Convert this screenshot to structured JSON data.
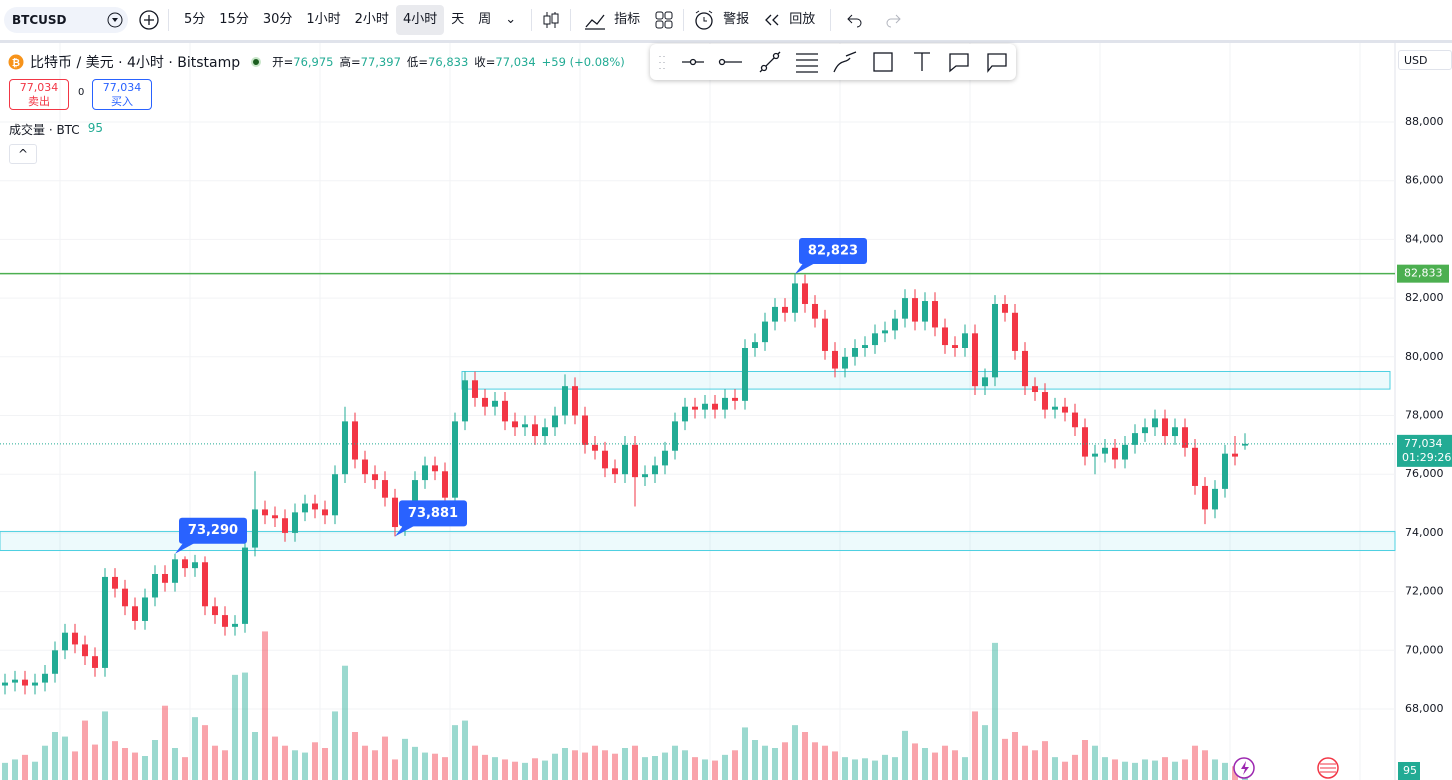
{
  "toolbar": {
    "symbol": "BTCUSD",
    "intervals": [
      "5分",
      "15分",
      "30分",
      "1小时",
      "2小时",
      "4小时",
      "天",
      "周"
    ],
    "indicators": "指标",
    "alert": "警报",
    "replay": "回放"
  },
  "legend": {
    "title": "比特币 / 美元 · 4小时 · Bitstamp",
    "ohlc": [
      {
        "label": "开=",
        "value": "76,975"
      },
      {
        "label": "高=",
        "value": "77,397"
      },
      {
        "label": "低=",
        "value": "76,833"
      },
      {
        "label": "收=",
        "value": "77,034"
      }
    ],
    "change": "+59 (+0.08%)",
    "sell": {
      "price": "77,034",
      "label": "卖出"
    },
    "spread": "0",
    "buy": {
      "price": "77,034",
      "label": "买入"
    },
    "volume_title": "成交量 · BTC"
  },
  "currency": "USD",
  "chart_data": {
    "type": "candlestick",
    "open": [
      68800,
      68900,
      69000,
      68800,
      68900,
      69200,
      70000,
      70600,
      70200,
      69800,
      69400,
      72500,
      72100,
      71500,
      71000,
      71800,
      72600,
      72300,
      73100,
      72800,
      73000,
      71500,
      71200,
      70800,
      70900,
      73500,
      74800,
      74600,
      74500,
      74000,
      74700,
      75000,
      74800,
      74600,
      76000,
      77800,
      76500,
      76000,
      75800,
      75200,
      74200,
      74600,
      75800,
      76300,
      76100,
      75200,
      77800,
      79200,
      78600,
      78300,
      78500,
      77800,
      77600,
      77700,
      77300,
      77600,
      78000,
      79000,
      78000,
      77000,
      76800,
      76200,
      76000,
      77000,
      75900,
      76000,
      76300,
      76800,
      77800,
      78300,
      78200,
      78400,
      78200,
      78600,
      78500,
      80300,
      80500,
      81200,
      81700,
      81500,
      82500,
      81800,
      81300,
      80200,
      79600,
      80000,
      80300,
      80400,
      80800,
      80900,
      81300,
      82000,
      81200,
      81900,
      81000,
      80400,
      80300,
      80800,
      79000,
      79300,
      81800,
      81500,
      80200,
      79000,
      78800,
      78200,
      78300,
      78100,
      77600,
      76600,
      76700,
      76900,
      76500,
      77000,
      77400,
      77600,
      77900,
      77300,
      77600,
      76900,
      75600,
      74800,
      75500,
      76700,
      76975
    ],
    "high": [
      69200,
      69300,
      69300,
      69200,
      69500,
      70300,
      70900,
      70900,
      70500,
      70100,
      72800,
      72800,
      72400,
      71800,
      72100,
      72900,
      72900,
      73290,
      73200,
      73250,
      73200,
      71800,
      71500,
      71200,
      73800,
      76100,
      75100,
      74900,
      74800,
      75000,
      75300,
      75300,
      75100,
      76300,
      78300,
      78100,
      76800,
      76300,
      76100,
      75500,
      74900,
      76100,
      76600,
      76600,
      76400,
      78100,
      79500,
      79500,
      78900,
      78800,
      78800,
      78100,
      78000,
      78000,
      77900,
      78300,
      79400,
      79300,
      78300,
      77300,
      77100,
      76500,
      77300,
      77300,
      76300,
      76600,
      77100,
      78100,
      78600,
      78600,
      78700,
      78700,
      78900,
      78900,
      80600,
      80800,
      81500,
      82000,
      82000,
      82823,
      82800,
      82100,
      81600,
      80500,
      80300,
      80600,
      80700,
      81100,
      81200,
      81600,
      82300,
      82300,
      82200,
      82200,
      81300,
      80700,
      81100,
      81100,
      79600,
      82100,
      82100,
      81800,
      80500,
      79300,
      79100,
      78600,
      78600,
      78400,
      77900,
      77000,
      77200,
      77200,
      77300,
      77700,
      77900,
      78200,
      78200,
      77900,
      77900,
      77200,
      75900,
      75800,
      77000,
      77300,
      77397
    ],
    "low": [
      68500,
      68600,
      68500,
      68500,
      68600,
      68900,
      69700,
      69900,
      69500,
      69100,
      69100,
      71800,
      71200,
      70700,
      70700,
      71500,
      72000,
      72000,
      72500,
      72500,
      71200,
      70900,
      70500,
      70500,
      70600,
      73200,
      74300,
      74200,
      73700,
      73700,
      74400,
      74500,
      74300,
      74300,
      75700,
      76200,
      75700,
      75500,
      74900,
      73881,
      73900,
      74300,
      75500,
      75800,
      74900,
      74900,
      77500,
      78300,
      78000,
      78000,
      77500,
      77300,
      77300,
      77000,
      77000,
      77300,
      77700,
      77700,
      76700,
      76500,
      75900,
      75700,
      75700,
      74900,
      75600,
      75700,
      76000,
      76500,
      77500,
      77900,
      77900,
      77900,
      77900,
      78200,
      78200,
      80000,
      80200,
      80900,
      81200,
      81200,
      81500,
      81000,
      79900,
      79300,
      79300,
      79700,
      80000,
      80100,
      80500,
      80600,
      81000,
      80900,
      80900,
      80700,
      80100,
      80000,
      80000,
      78700,
      78700,
      79000,
      81200,
      79900,
      78700,
      78500,
      77900,
      77900,
      77800,
      77300,
      76300,
      76000,
      76400,
      76200,
      76200,
      76700,
      77100,
      77300,
      77000,
      77000,
      76600,
      75300,
      74300,
      74500,
      75200,
      76300,
      76833
    ],
    "close": [
      68900,
      69000,
      68800,
      68900,
      69200,
      70000,
      70600,
      70200,
      69800,
      69400,
      72500,
      72100,
      71500,
      71000,
      71800,
      72600,
      72300,
      73100,
      72800,
      73000,
      71500,
      71200,
      70800,
      70900,
      73500,
      74800,
      74600,
      74500,
      74000,
      74700,
      75000,
      74800,
      74600,
      76000,
      77800,
      76500,
      76000,
      75800,
      75200,
      74200,
      74600,
      75800,
      76300,
      76100,
      75200,
      77800,
      79200,
      78600,
      78300,
      78500,
      77800,
      77600,
      77700,
      77300,
      77600,
      78000,
      79000,
      78000,
      77000,
      76800,
      76200,
      76000,
      77000,
      75900,
      76000,
      76300,
      76800,
      77800,
      78300,
      78200,
      78400,
      78200,
      78600,
      78500,
      80300,
      80500,
      81200,
      81700,
      81500,
      82500,
      81800,
      81300,
      80200,
      79600,
      80000,
      80300,
      80400,
      80800,
      80900,
      81300,
      82000,
      81200,
      81900,
      81000,
      80400,
      80300,
      80800,
      79000,
      79300,
      81800,
      81500,
      80200,
      79000,
      78800,
      78200,
      78300,
      78100,
      77600,
      76600,
      76700,
      76900,
      76500,
      77000,
      77400,
      77600,
      77900,
      77300,
      77600,
      76900,
      75600,
      74800,
      75500,
      76700,
      76600,
      77034
    ],
    "volume": [
      150,
      180,
      220,
      160,
      300,
      420,
      380,
      250,
      520,
      310,
      600,
      340,
      280,
      240,
      210,
      350,
      650,
      280,
      200,
      550,
      480,
      300,
      260,
      920,
      940,
      420,
      1300,
      380,
      300,
      260,
      240,
      330,
      280,
      600,
      1000,
      420,
      300,
      260,
      380,
      180,
      360,
      290,
      240,
      230,
      200,
      480,
      520,
      300,
      220,
      200,
      180,
      160,
      150,
      190,
      170,
      230,
      280,
      260,
      240,
      300,
      260,
      230,
      280,
      300,
      200,
      210,
      240,
      300,
      260,
      200,
      180,
      170,
      220,
      260,
      460,
      350,
      300,
      280,
      330,
      480,
      420,
      330,
      300,
      250,
      200,
      180,
      190,
      170,
      220,
      200,
      430,
      320,
      280,
      240,
      300,
      260,
      200,
      600,
      480,
      1200,
      360,
      420,
      300,
      260,
      340,
      200,
      160,
      220,
      350,
      300,
      200,
      180,
      160,
      150,
      180,
      170,
      200,
      160,
      180,
      300,
      260,
      180,
      150,
      120,
      95
    ],
    "up_color": "#22ab94",
    "down_color": "#f23645",
    "ylim": [
      65581,
      90726
    ],
    "vlim": [
      0,
      1400
    ],
    "yticks": [
      {
        "value": 68000,
        "label": "68,000"
      },
      {
        "value": 70000,
        "label": "70,000"
      },
      {
        "value": 72000,
        "label": "72,000"
      },
      {
        "value": 74000,
        "label": "74,000"
      },
      {
        "value": 76000,
        "label": "76,000"
      },
      {
        "value": 78000,
        "label": "78,000"
      },
      {
        "value": 80000,
        "label": "80,000"
      },
      {
        "value": 82000,
        "label": "82,000"
      },
      {
        "value": 84000,
        "label": "84,000"
      },
      {
        "value": 86000,
        "label": "86,000"
      },
      {
        "value": 88000,
        "label": "88,000"
      }
    ],
    "grid": true,
    "hline": {
      "value": 82833,
      "label": "82,833",
      "color": "#4caf50"
    },
    "zones": [
      {
        "low": 78900,
        "high": 79500
      },
      {
        "low": 73400,
        "high": 74050
      }
    ],
    "markers": [
      {
        "value": 82823,
        "label": "82,823"
      },
      {
        "value": 73881,
        "label": "73,881"
      },
      {
        "value": 73290,
        "label": "73,290"
      }
    ],
    "last_price": {
      "value": 77034,
      "label": "77,034",
      "countdown": "01:29:26"
    }
  }
}
